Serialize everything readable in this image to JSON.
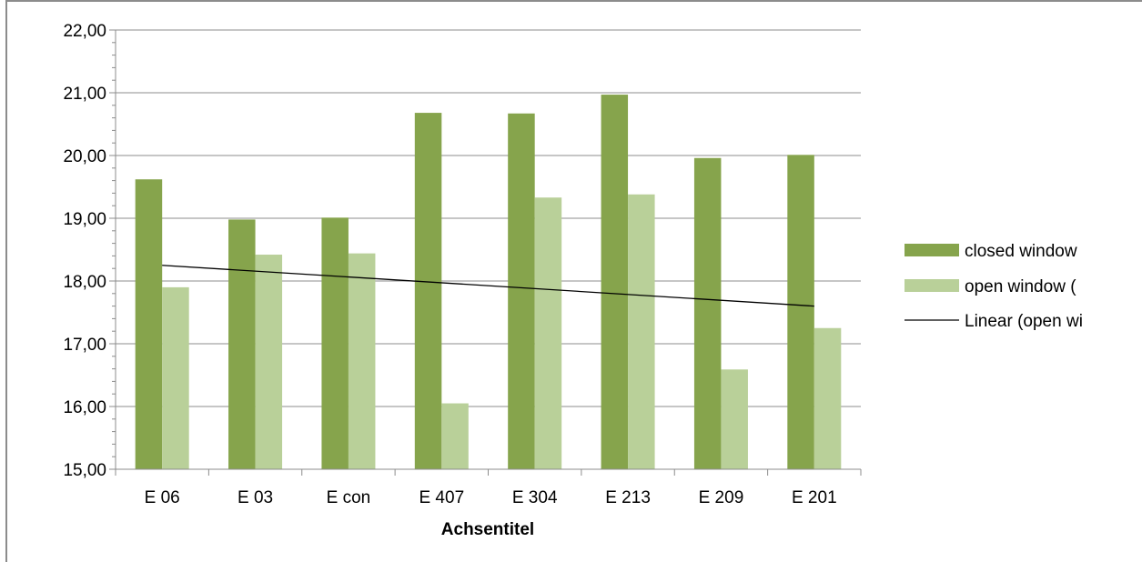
{
  "chart_data": {
    "type": "bar",
    "title": "",
    "xlabel": "Achsentitel",
    "ylabel": "",
    "ylim": [
      15,
      22
    ],
    "yticks": [
      "15,00",
      "16,00",
      "17,00",
      "18,00",
      "19,00",
      "20,00",
      "21,00",
      "22,00"
    ],
    "grid": true,
    "legend_position": "right",
    "categories": [
      "E 06",
      "E 03",
      "E con",
      "E 407",
      "E 304",
      "E 213",
      "E 209",
      "E 201"
    ],
    "series": [
      {
        "name": "closed window",
        "color": "#86a44c",
        "values": [
          19.62,
          18.98,
          19.01,
          20.68,
          20.67,
          20.97,
          19.96,
          20.01
        ]
      },
      {
        "name": "open window (",
        "color": "#b9d099",
        "values": [
          17.9,
          18.42,
          18.44,
          16.05,
          19.33,
          19.38,
          16.59,
          17.25
        ]
      }
    ],
    "trendline": {
      "name": "Linear (open wi",
      "color": "#000000",
      "start": 18.25,
      "end": 17.6
    }
  }
}
